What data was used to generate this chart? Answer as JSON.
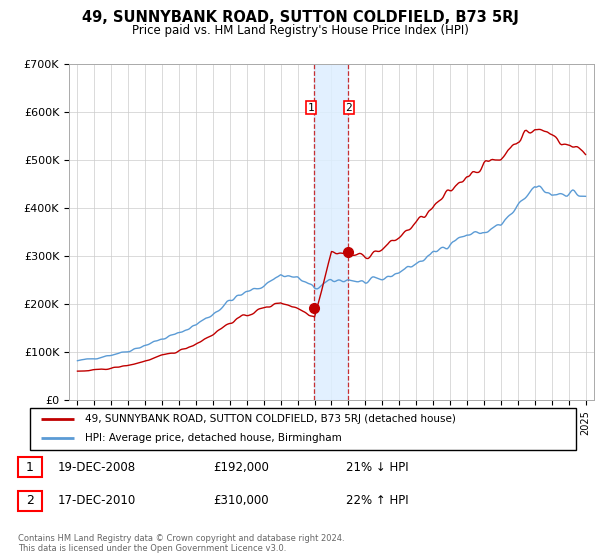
{
  "title": "49, SUNNYBANK ROAD, SUTTON COLDFIELD, B73 5RJ",
  "subtitle": "Price paid vs. HM Land Registry's House Price Index (HPI)",
  "legend_line1": "49, SUNNYBANK ROAD, SUTTON COLDFIELD, B73 5RJ (detached house)",
  "legend_line2": "HPI: Average price, detached house, Birmingham",
  "footnote": "Contains HM Land Registry data © Crown copyright and database right 2024.\nThis data is licensed under the Open Government Licence v3.0.",
  "transaction1_date": "19-DEC-2008",
  "transaction1_price": "£192,000",
  "transaction1_hpi": "21% ↓ HPI",
  "transaction2_date": "17-DEC-2010",
  "transaction2_price": "£310,000",
  "transaction2_hpi": "22% ↑ HPI",
  "ylim": [
    0,
    700000
  ],
  "yticks": [
    0,
    100000,
    200000,
    300000,
    400000,
    500000,
    600000,
    700000
  ],
  "ytick_labels": [
    "£0",
    "£100K",
    "£200K",
    "£300K",
    "£400K",
    "£500K",
    "£600K",
    "£700K"
  ],
  "hpi_color": "#5b9bd5",
  "price_color": "#c00000",
  "highlight_color": "#ddeeff",
  "marker1_x": 2008.96,
  "marker1_y": 192000,
  "marker2_x": 2010.96,
  "marker2_y": 310000,
  "highlight_xmin": 2008.96,
  "highlight_xmax": 2010.96,
  "xlim_left": 1994.5,
  "xlim_right": 2025.5
}
